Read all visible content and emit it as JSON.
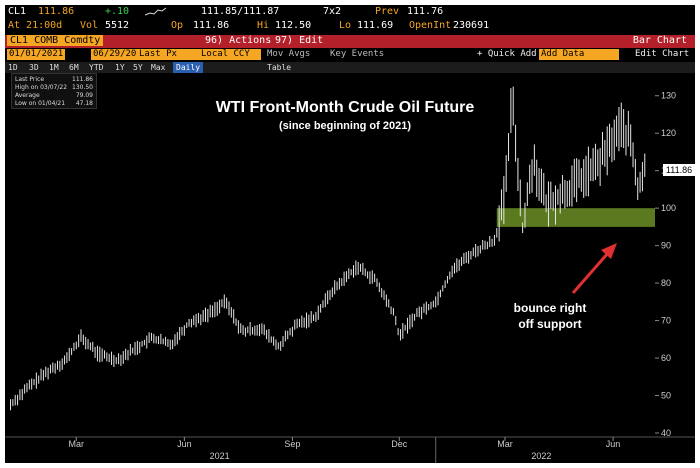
{
  "colors": {
    "accent_orange": "#f5a623",
    "menu_red": "#b4202a",
    "up_green": "#39d353",
    "support_zone": "#6b8e23",
    "arrow_red": "#e0302f"
  },
  "quote": {
    "ticker": "CL1",
    "last": "111.86",
    "change": "+.10",
    "prev_label": "Prev",
    "prev": "111.76",
    "bid_ask": "111.85/111.87",
    "size": "7x2",
    "time_label": "At 21:00d",
    "vol_label": "Vol",
    "vol": "5512",
    "op_label": "Op",
    "op": "111.86",
    "hi_label": "Hi",
    "hi": "112.50",
    "lo_label": "Lo",
    "lo": "111.69",
    "oi_label": "OpenInt",
    "oi": "230691"
  },
  "menu": {
    "security": "CL1 COMB Comdty",
    "actions": "96) Actions",
    "edit": "97) Edit",
    "view": "Bar Chart"
  },
  "controls": {
    "start_date": "01/01/2021",
    "end_date": "06/29/2022",
    "field": "Last Px",
    "currency": "Local CCY",
    "mov_avgs": "Mov Avgs",
    "key_events": "Key Events",
    "quick_add": "+ Quick Add",
    "add_data": "Add Data",
    "edit_chart": "Edit Chart"
  },
  "periods": [
    "1D",
    "3D",
    "1M",
    "6M",
    "YTD",
    "1Y",
    "5Y",
    "Max"
  ],
  "period_selected": "Daily",
  "table_label": "Table",
  "legend": {
    "rows": [
      {
        "label": "Last Price",
        "value": "111.86"
      },
      {
        "label": "High on 03/07/22",
        "value": "130.50"
      },
      {
        "label": "Average",
        "value": "79.09"
      },
      {
        "label": "Low on 01/04/21",
        "value": "47.18"
      }
    ]
  },
  "chart_data": {
    "type": "line",
    "title": "WTI Front-Month Crude Oil Future",
    "subtitle": "(since beginning of 2021)",
    "ylim": [
      40,
      135
    ],
    "yticks": [
      40,
      50,
      60,
      70,
      80,
      90,
      100,
      110,
      120,
      130
    ],
    "x_month_labels": [
      "Mar",
      "Jun",
      "Sep",
      "Dec",
      "Mar",
      "Jun"
    ],
    "x_year_labels": [
      "2021",
      "2022"
    ],
    "last_price_tag": "111.86",
    "support_band": [
      95,
      100
    ],
    "annotation": [
      "bounce right",
      "off support"
    ],
    "series": [
      {
        "x": [
          "2021-01-04",
          "2021-01-20",
          "2021-02-05",
          "2021-02-20",
          "2021-03-05",
          "2021-03-20",
          "2021-04-05",
          "2021-04-20",
          "2021-05-05",
          "2021-05-20",
          "2021-06-05",
          "2021-06-20",
          "2021-07-06",
          "2021-07-20",
          "2021-08-05",
          "2021-08-20",
          "2021-09-05",
          "2021-09-20",
          "2021-10-05",
          "2021-10-26",
          "2021-11-10",
          "2021-11-26",
          "2021-12-01",
          "2021-12-15",
          "2022-01-01",
          "2022-01-15",
          "2022-02-01",
          "2022-02-20",
          "2022-03-01",
          "2022-03-07",
          "2022-03-16",
          "2022-03-25",
          "2022-04-05",
          "2022-04-20",
          "2022-05-05",
          "2022-05-20",
          "2022-06-08",
          "2022-06-16",
          "2022-06-22",
          "2022-06-29"
        ],
        "values": [
          47.6,
          52.5,
          56.5,
          59.5,
          65.5,
          61.0,
          59.5,
          62.5,
          65.5,
          63.5,
          69.5,
          71.5,
          75.0,
          67.0,
          68.0,
          63.0,
          69.0,
          71.0,
          78.0,
          84.5,
          81.0,
          72.0,
          66.0,
          71.5,
          75.0,
          83.5,
          88.0,
          91.5,
          103.0,
          130.0,
          95.0,
          113.0,
          101.0,
          104.0,
          108.0,
          112.0,
          122.0,
          118.0,
          105.0,
          111.86
        ]
      }
    ]
  }
}
